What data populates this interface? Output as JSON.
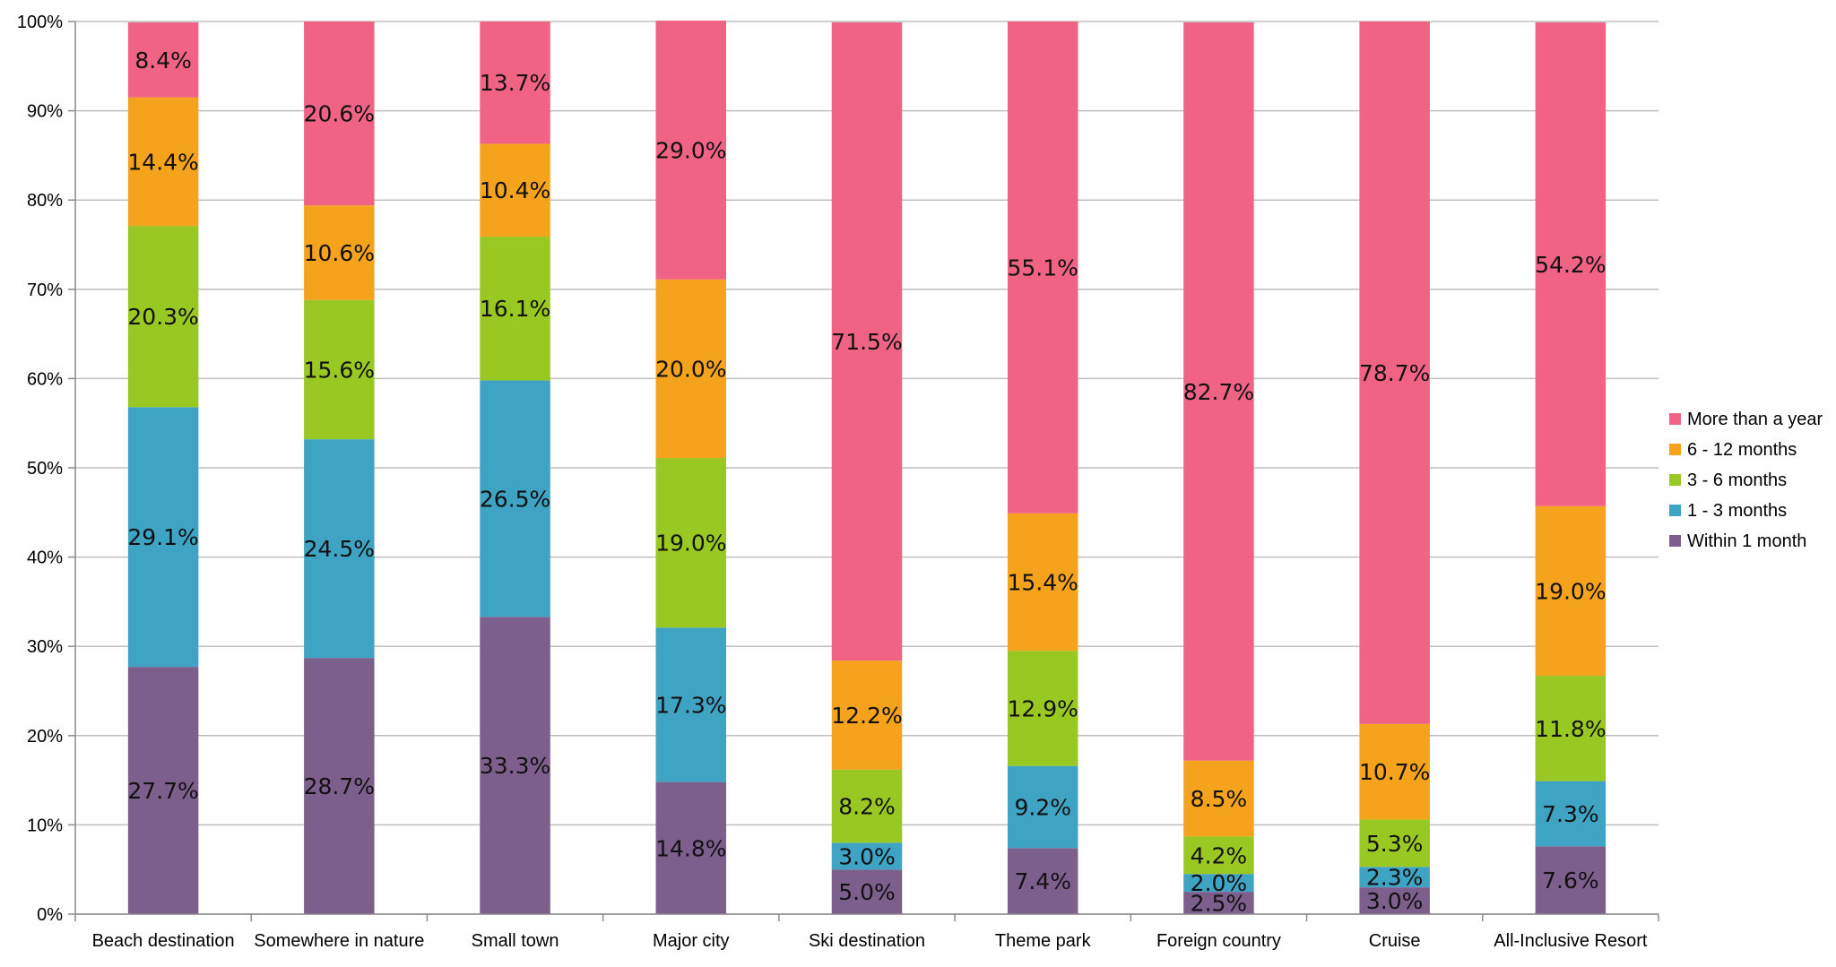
{
  "chart_data": {
    "type": "bar",
    "stacked": true,
    "percent": true,
    "categories": [
      "Beach destination",
      "Somewhere in nature",
      "Small town",
      "Major city",
      "Ski destination",
      "Theme park",
      "Foreign country",
      "Cruise",
      "All-Inclusive Resort"
    ],
    "series": [
      {
        "name": "Within 1 month",
        "color": "#7D5F8E",
        "values": [
          27.7,
          28.7,
          33.3,
          14.8,
          5.0,
          7.4,
          2.5,
          3.0,
          7.6
        ]
      },
      {
        "name": "1 - 3 months",
        "color": "#3FA3C3",
        "values": [
          29.1,
          24.5,
          26.5,
          17.3,
          3.0,
          9.2,
          2.0,
          2.3,
          7.3
        ]
      },
      {
        "name": "3 - 6 months",
        "color": "#9AC823",
        "values": [
          20.3,
          15.6,
          16.1,
          19.0,
          8.2,
          12.9,
          4.2,
          5.3,
          11.8
        ]
      },
      {
        "name": "6 - 12 months",
        "color": "#F5A21D",
        "values": [
          14.4,
          10.6,
          10.4,
          20.0,
          12.2,
          15.4,
          8.5,
          10.7,
          19.0
        ]
      },
      {
        "name": "More than a year",
        "color": "#F06384",
        "values": [
          8.4,
          20.6,
          13.7,
          29.0,
          71.5,
          55.1,
          82.7,
          78.7,
          54.2
        ]
      }
    ],
    "data_labels": {
      "Within 1 month": [
        "27.7%",
        "28.7%",
        "33.3%",
        "14.8%",
        "5.0%",
        "7.4%",
        "2.5%",
        "3.0%",
        "7.6%"
      ],
      "1 - 3 months": [
        "29.1%",
        "24.5%",
        "26.5%",
        "17.3%",
        "3.0%",
        "9.2%",
        "2.0%",
        "2.3%",
        "7.3%"
      ],
      "3 - 6 months": [
        "20.3%",
        "15.6%",
        "16.1%",
        "19.0%",
        "8.2%",
        "12.9%",
        "4.2%",
        "5.3%",
        "11.8%"
      ],
      "6 - 12 months": [
        "14.4%",
        "10.6%",
        "10.4%",
        "20.0%",
        "12.2%",
        "15.4%",
        "8.5%",
        "10.7%",
        "19.0%"
      ],
      "More than a year": [
        "8.4%",
        "20.6%",
        "13.7%",
        "29.0%",
        "71.5%",
        "55.1%",
        "82.7%",
        "78.7%",
        "54.2%"
      ]
    },
    "y_ticks": [
      "0%",
      "10%",
      "20%",
      "30%",
      "40%",
      "50%",
      "60%",
      "70%",
      "80%",
      "90%",
      "100%"
    ],
    "ylim": [
      0,
      100
    ],
    "grid": true,
    "legend": {
      "placement": "right",
      "order": [
        "More than a year",
        "6 - 12 months",
        "3 - 6 months",
        "1 - 3 months",
        "Within 1 month"
      ]
    },
    "title": "",
    "xlabel": "",
    "ylabel": ""
  }
}
